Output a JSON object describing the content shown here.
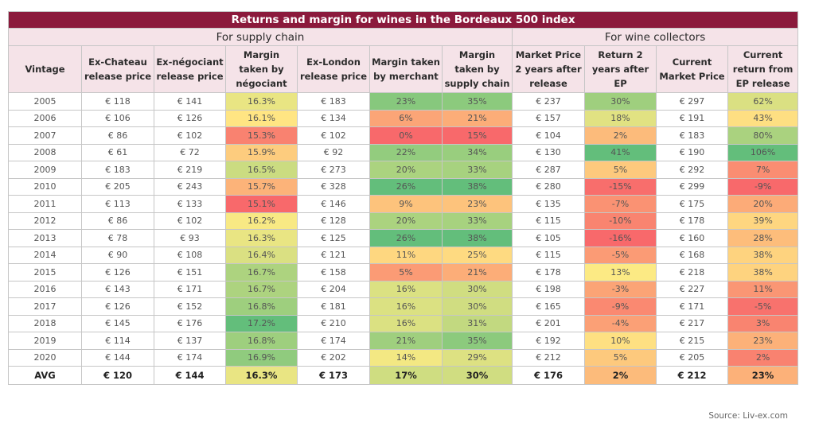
{
  "title": "Returns and margin for wines in the Bordeaux 500 index",
  "groups": [
    "For supply chain",
    "For wine collectors"
  ],
  "source": "Source: Liv-ex.com",
  "colors": {
    "red": "#f8696b",
    "yellow": "#ffeb84",
    "green": "#63be7b"
  },
  "chart_data": {
    "type": "table",
    "title": "Returns and margin for wines in the Bordeaux 500 index",
    "columns": [
      "Vintage",
      "Ex-Chateau release price",
      "Ex-négociant release price",
      "Margin taken by négociant",
      "Ex-London release price",
      "Margin taken by merchant",
      "Margin taken by supply chain",
      "Market Price 2 years after release",
      "Return 2 years after EP",
      "Current Market Price",
      "Current return from EP release"
    ],
    "rows": [
      [
        "2005",
        "€ 118",
        "€ 141",
        "16.3%",
        "€ 183",
        "23%",
        "35%",
        "€ 237",
        "30%",
        "€ 297",
        "62%"
      ],
      [
        "2006",
        "€ 106",
        "€ 126",
        "16.1%",
        "€ 134",
        "6%",
        "21%",
        "€ 157",
        "18%",
        "€ 191",
        "43%"
      ],
      [
        "2007",
        "€ 86",
        "€ 102",
        "15.3%",
        "€ 102",
        "0%",
        "15%",
        "€ 104",
        "2%",
        "€ 183",
        "80%"
      ],
      [
        "2008",
        "€ 61",
        "€ 72",
        "15.9%",
        "€ 92",
        "22%",
        "34%",
        "€ 130",
        "41%",
        "€ 190",
        "106%"
      ],
      [
        "2009",
        "€ 183",
        "€ 219",
        "16.5%",
        "€ 273",
        "20%",
        "33%",
        "€ 287",
        "5%",
        "€ 292",
        "7%"
      ],
      [
        "2010",
        "€ 205",
        "€ 243",
        "15.7%",
        "€ 328",
        "26%",
        "38%",
        "€ 280",
        "-15%",
        "€ 299",
        "-9%"
      ],
      [
        "2011",
        "€ 113",
        "€ 133",
        "15.1%",
        "€ 146",
        "9%",
        "23%",
        "€ 135",
        "-7%",
        "€ 175",
        "20%"
      ],
      [
        "2012",
        "€ 86",
        "€ 102",
        "16.2%",
        "€ 128",
        "20%",
        "33%",
        "€ 115",
        "-10%",
        "€ 178",
        "39%"
      ],
      [
        "2013",
        "€ 78",
        "€ 93",
        "16.3%",
        "€ 125",
        "26%",
        "38%",
        "€ 105",
        "-16%",
        "€ 160",
        "28%"
      ],
      [
        "2014",
        "€ 90",
        "€ 108",
        "16.4%",
        "€ 121",
        "11%",
        "25%",
        "€ 115",
        "-5%",
        "€ 168",
        "38%"
      ],
      [
        "2015",
        "€ 126",
        "€ 151",
        "16.7%",
        "€ 158",
        "5%",
        "21%",
        "€ 178",
        "13%",
        "€ 218",
        "38%"
      ],
      [
        "2016",
        "€ 143",
        "€ 171",
        "16.7%",
        "€ 204",
        "16%",
        "30%",
        "€ 198",
        "-3%",
        "€ 227",
        "11%"
      ],
      [
        "2017",
        "€ 126",
        "€ 152",
        "16.8%",
        "€ 181",
        "16%",
        "30%",
        "€ 165",
        "-9%",
        "€ 171",
        "-5%"
      ],
      [
        "2018",
        "€ 145",
        "€ 176",
        "17.2%",
        "€ 210",
        "16%",
        "31%",
        "€ 201",
        "-4%",
        "€ 217",
        "3%"
      ],
      [
        "2019",
        "€ 114",
        "€ 137",
        "16.8%",
        "€ 174",
        "21%",
        "35%",
        "€ 192",
        "10%",
        "€ 215",
        "23%"
      ],
      [
        "2020",
        "€ 144",
        "€ 174",
        "16.9%",
        "€ 202",
        "14%",
        "29%",
        "€ 212",
        "5%",
        "€ 205",
        "2%"
      ]
    ],
    "avg_row": [
      "AVG",
      "€ 120",
      "€ 144",
      "16.3%",
      "€ 173",
      "17%",
      "30%",
      "€ 176",
      "2%",
      "€ 212",
      "23%"
    ],
    "heatmap_columns": [
      3,
      5,
      6,
      8,
      10
    ]
  }
}
